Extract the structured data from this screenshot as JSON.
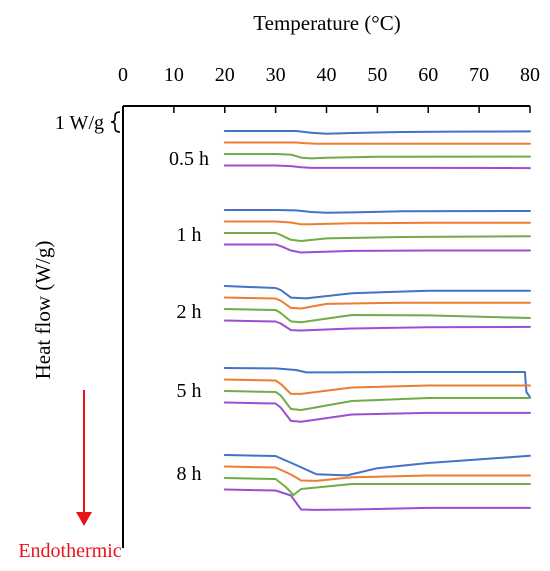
{
  "chart_data": {
    "type": "line",
    "title": "",
    "xlabel": "Temperature (°C)",
    "ylabel": "Heat flow (W/g)",
    "xlim": [
      0,
      80
    ],
    "x_ticks": [
      0,
      10,
      20,
      30,
      40,
      50,
      60,
      70,
      80
    ],
    "x_axis_position": "top",
    "grid": false,
    "legend": "none",
    "scale_bar_label": "1 W/g",
    "direction_label": "Endothermic",
    "direction": "down",
    "colors": {
      "blue": "#4472c4",
      "orange": "#ed7d31",
      "green": "#70ad47",
      "purple": "#9b4fd0",
      "arrow": "#e8141b"
    },
    "groups": [
      {
        "label": "0.5 h",
        "curves": [
          {
            "color": "blue",
            "x": [
              20,
              30,
              34,
              37,
              40,
              45,
              55,
              65,
              80
            ],
            "y": [
              0.0,
              0.0,
              0.0,
              -0.09,
              -0.14,
              -0.1,
              -0.05,
              -0.03,
              -0.02
            ]
          },
          {
            "color": "orange",
            "x": [
              20,
              30,
              34,
              36,
              38,
              45,
              60,
              80
            ],
            "y": [
              0.0,
              0.0,
              0.0,
              -0.04,
              -0.06,
              -0.06,
              -0.06,
              -0.06
            ]
          },
          {
            "color": "green",
            "x": [
              20,
              30,
              33,
              35,
              37,
              40,
              50,
              80
            ],
            "y": [
              0.0,
              0.0,
              -0.03,
              -0.18,
              -0.22,
              -0.19,
              -0.14,
              -0.13
            ]
          },
          {
            "color": "purple",
            "x": [
              20,
              30,
              33,
              35,
              37,
              45,
              60,
              80
            ],
            "y": [
              0.0,
              0.0,
              -0.03,
              -0.09,
              -0.12,
              -0.12,
              -0.12,
              -0.13
            ]
          }
        ]
      },
      {
        "label": "1 h",
        "curves": [
          {
            "color": "blue",
            "x": [
              20,
              30,
              34,
              37,
              40,
              45,
              55,
              80
            ],
            "y": [
              0.0,
              0.0,
              -0.02,
              -0.1,
              -0.14,
              -0.12,
              -0.06,
              -0.05
            ]
          },
          {
            "color": "orange",
            "x": [
              20,
              30,
              33,
              35,
              37,
              45,
              60,
              80
            ],
            "y": [
              0.0,
              0.0,
              -0.05,
              -0.14,
              -0.14,
              -0.09,
              -0.06,
              -0.06
            ]
          },
          {
            "color": "green",
            "x": [
              20,
              30,
              31,
              33,
              35,
              40,
              55,
              80
            ],
            "y": [
              0.0,
              0.0,
              -0.1,
              -0.34,
              -0.4,
              -0.27,
              -0.2,
              -0.16
            ]
          },
          {
            "color": "purple",
            "x": [
              20,
              30,
              31,
              33,
              35,
              45,
              60,
              80
            ],
            "y": [
              0.0,
              0.0,
              -0.08,
              -0.3,
              -0.4,
              -0.32,
              -0.3,
              -0.3
            ]
          }
        ]
      },
      {
        "label": "2 h",
        "curves": [
          {
            "color": "blue",
            "x": [
              20,
              30,
              31,
              33,
              36,
              45,
              60,
              80
            ],
            "y": [
              0.0,
              -0.1,
              -0.2,
              -0.58,
              -0.62,
              -0.36,
              -0.24,
              -0.24
            ]
          },
          {
            "color": "orange",
            "x": [
              20,
              30,
              31,
              33,
              35,
              40,
              55,
              80
            ],
            "y": [
              0.0,
              -0.05,
              -0.16,
              -0.52,
              -0.55,
              -0.32,
              -0.26,
              -0.26
            ]
          },
          {
            "color": "green",
            "x": [
              20,
              30,
              31,
              33,
              35,
              45,
              60,
              80
            ],
            "y": [
              0.0,
              -0.05,
              -0.2,
              -0.62,
              -0.66,
              -0.3,
              -0.32,
              -0.45
            ]
          },
          {
            "color": "purple",
            "x": [
              20,
              30,
              31,
              33,
              35,
              45,
              60,
              80
            ],
            "y": [
              0.0,
              -0.05,
              -0.15,
              -0.48,
              -0.5,
              -0.4,
              -0.34,
              -0.32
            ]
          }
        ]
      },
      {
        "label": "5 h",
        "curves": [
          {
            "color": "blue",
            "x": [
              20,
              30,
              34,
              36,
              40,
              60,
              79,
              79.3,
              80
            ],
            "y": [
              0.0,
              -0.02,
              -0.1,
              -0.22,
              -0.22,
              -0.2,
              -0.2,
              -1.2,
              -1.45
            ]
          },
          {
            "color": "orange",
            "x": [
              20,
              30,
              31,
              33,
              35,
              45,
              60,
              80
            ],
            "y": [
              0.0,
              -0.05,
              -0.22,
              -0.72,
              -0.72,
              -0.4,
              -0.3,
              -0.3
            ]
          },
          {
            "color": "green",
            "x": [
              20,
              30,
              31,
              33,
              35,
              45,
              60,
              80
            ],
            "y": [
              0.0,
              -0.05,
              -0.22,
              -0.9,
              -0.95,
              -0.5,
              -0.35,
              -0.35
            ]
          },
          {
            "color": "purple",
            "x": [
              20,
              30,
              31,
              33,
              35,
              45,
              60,
              80
            ],
            "y": [
              0.0,
              -0.05,
              -0.25,
              -0.92,
              -0.96,
              -0.6,
              -0.52,
              -0.52
            ]
          }
        ]
      },
      {
        "label": "8 h",
        "curves": [
          {
            "color": "blue",
            "x": [
              20,
              30,
              34,
              38,
              44,
              50,
              60,
              80
            ],
            "y": [
              0.0,
              -0.05,
              -0.5,
              -0.96,
              -1.02,
              -0.66,
              -0.4,
              -0.04
            ]
          },
          {
            "color": "orange",
            "x": [
              20,
              30,
              33,
              35,
              38,
              45,
              60,
              80
            ],
            "y": [
              0.0,
              -0.05,
              -0.4,
              -0.7,
              -0.72,
              -0.54,
              -0.45,
              -0.45
            ]
          },
          {
            "color": "green",
            "x": [
              20,
              30,
              32,
              33.5,
              35,
              45,
              60,
              80
            ],
            "y": [
              0.0,
              -0.05,
              -0.45,
              -0.85,
              -0.55,
              -0.3,
              -0.3,
              -0.3
            ]
          },
          {
            "color": "purple",
            "x": [
              20,
              30,
              33,
              35,
              38,
              45,
              60,
              80
            ],
            "y": [
              0.0,
              -0.05,
              -0.3,
              -1.0,
              -1.02,
              -1.0,
              -0.92,
              -0.92
            ]
          }
        ]
      }
    ]
  }
}
